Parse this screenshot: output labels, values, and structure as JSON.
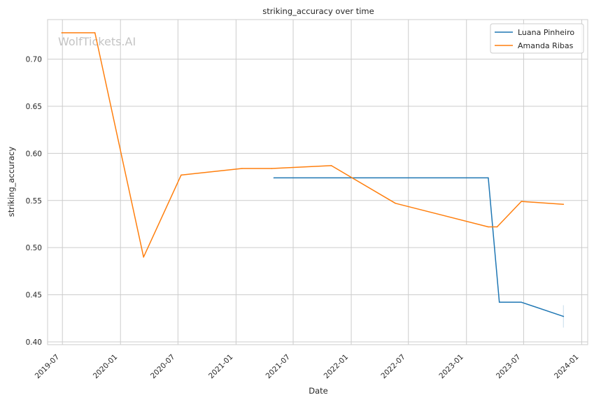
{
  "chart_data": {
    "type": "line",
    "title": "striking_accuracy over time",
    "xlabel": "Date",
    "ylabel": "striking_accuracy",
    "watermark": "WolfTickets.AI",
    "grid": true,
    "legend_position": "top-right",
    "xlim": [
      "2019-05-15",
      "2024-01-20"
    ],
    "ylim": [
      0.397,
      0.742
    ],
    "x_ticks": [
      "2019-07",
      "2020-01",
      "2020-07",
      "2021-01",
      "2021-07",
      "2022-01",
      "2022-07",
      "2023-01",
      "2023-07",
      "2024-01"
    ],
    "y_ticks": [
      "0.40",
      "0.45",
      "0.50",
      "0.55",
      "0.60",
      "0.65",
      "0.70"
    ],
    "series": [
      {
        "name": "Luana Pinheiro",
        "color": "#1f77b4",
        "points": [
          {
            "x": "2021-05-01",
            "y": 0.574
          },
          {
            "x": "2023-03-11",
            "y": 0.574
          },
          {
            "x": "2023-04-15",
            "y": 0.442
          },
          {
            "x": "2023-06-24",
            "y": 0.442
          },
          {
            "x": "2023-11-04",
            "y": 0.427
          }
        ]
      },
      {
        "name": "Amanda Ribas",
        "color": "#ff7f0e",
        "points": [
          {
            "x": "2019-06-29",
            "y": 0.728
          },
          {
            "x": "2019-10-12",
            "y": 0.728
          },
          {
            "x": "2020-03-14",
            "y": 0.49
          },
          {
            "x": "2020-07-11",
            "y": 0.577
          },
          {
            "x": "2021-01-20",
            "y": 0.584
          },
          {
            "x": "2021-04-24",
            "y": 0.584
          },
          {
            "x": "2021-10-30",
            "y": 0.587
          },
          {
            "x": "2022-05-21",
            "y": 0.547
          },
          {
            "x": "2023-03-11",
            "y": 0.522
          },
          {
            "x": "2023-04-08",
            "y": 0.522
          },
          {
            "x": "2023-06-24",
            "y": 0.549
          },
          {
            "x": "2023-11-04",
            "y": 0.546
          }
        ]
      }
    ]
  }
}
